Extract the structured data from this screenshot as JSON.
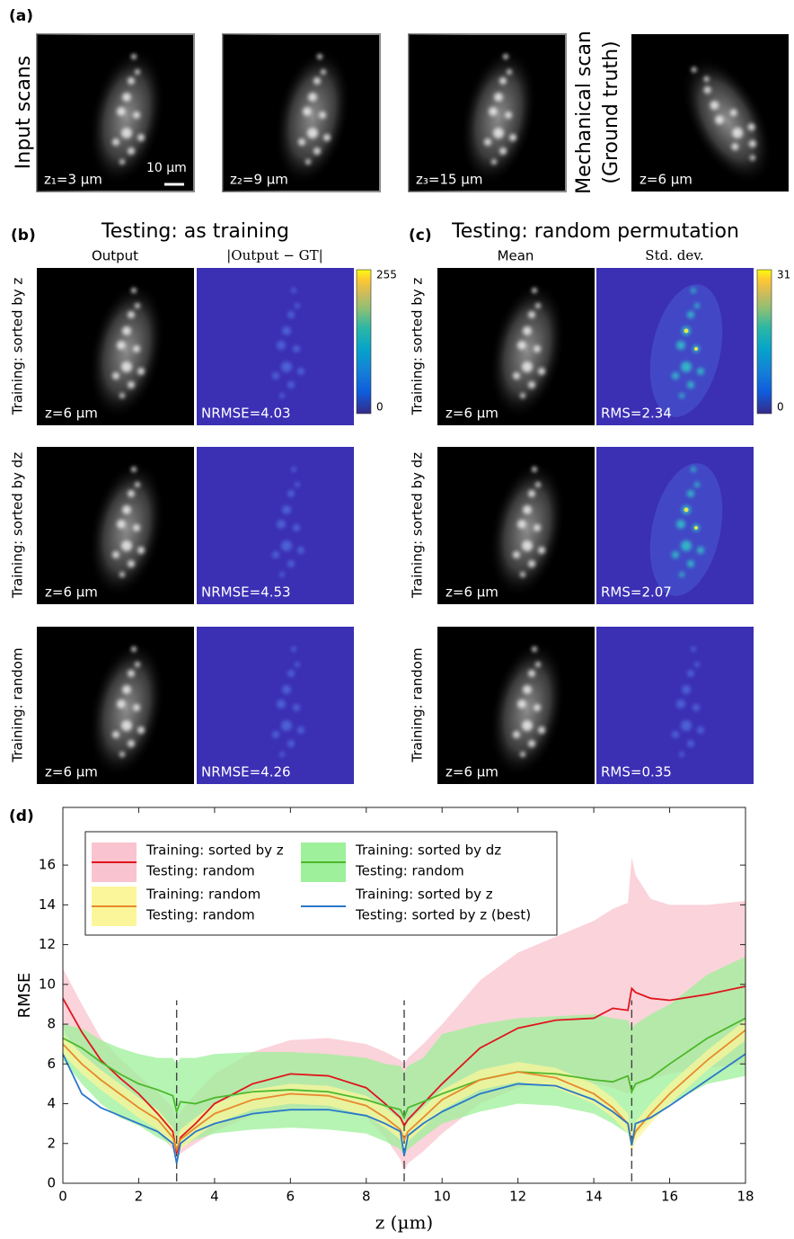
{
  "panel_a": {
    "label": "(a)",
    "row_title": "Input scans",
    "scans": [
      "z₁=3 µm",
      "z₂=9 µm",
      "z₃=15 µm"
    ],
    "scale_bar": "10 µm",
    "gt_title": [
      "Mechanical scan",
      "(Ground truth)"
    ],
    "gt_label": "z=6 µm"
  },
  "panel_b": {
    "label": "(b)",
    "title": "Testing: as training",
    "columns": [
      "Output",
      "|Output − GT|"
    ],
    "colorbar": {
      "max": 255,
      "min": 0
    },
    "rows": [
      {
        "name": "Training: sorted by z",
        "image_label": "z=6 µm",
        "metric": "NRMSE=4.03"
      },
      {
        "name": "Training: sorted by dz",
        "image_label": "z=6 µm",
        "metric": "NRMSE=4.53"
      },
      {
        "name": "Training: random",
        "image_label": "z=6 µm",
        "metric": "NRMSE=4.26"
      }
    ]
  },
  "panel_c": {
    "label": "(c)",
    "title": "Testing: random permutation",
    "columns": [
      "Mean",
      "Std. dev."
    ],
    "colorbar": {
      "max": 31,
      "min": 0
    },
    "rows": [
      {
        "name": "Training: sorted by z",
        "image_label": "z=6 µm",
        "metric": "RMS=2.34"
      },
      {
        "name": "Training: sorted by dz",
        "image_label": "z=6 µm",
        "metric": "RMS=2.07"
      },
      {
        "name": "Training: random",
        "image_label": "z=6 µm",
        "metric": "RMS=0.35"
      }
    ]
  },
  "panel_d_label": "(d)",
  "chart_data": {
    "type": "line",
    "xlabel": "z (µm)",
    "ylabel": "RMSE",
    "xlim": [
      0,
      18
    ],
    "ylim": [
      0,
      18.9
    ],
    "xticks": [
      0,
      2,
      4,
      6,
      8,
      10,
      12,
      14,
      16,
      18
    ],
    "yticks": [
      0,
      2,
      4,
      6,
      8,
      10,
      12,
      14,
      16
    ],
    "vlines": [
      3,
      9,
      15
    ],
    "legend": "upper left",
    "x": [
      0,
      0.5,
      1,
      1.5,
      2,
      2.5,
      2.9,
      3,
      3.1,
      3.5,
      4,
      5,
      6,
      7,
      8,
      8.5,
      8.9,
      9,
      9.1,
      9.5,
      10,
      11,
      12,
      13,
      14,
      14.5,
      14.9,
      15,
      15.1,
      15.5,
      16,
      17,
      18
    ],
    "series": [
      {
        "name": [
          "Training: sorted by z",
          "Testing: random"
        ],
        "color": "#e0151c",
        "band_color": "#f9c4cf",
        "values": [
          9.3,
          7.6,
          6.2,
          5.3,
          4.5,
          3.5,
          2.6,
          1.5,
          2.3,
          3.0,
          4.0,
          5.0,
          5.5,
          5.4,
          4.8,
          4.0,
          3.3,
          2.9,
          3.2,
          4.0,
          5.0,
          6.8,
          7.8,
          8.2,
          8.3,
          8.8,
          8.7,
          9.8,
          9.6,
          9.3,
          9.2,
          9.5,
          9.9
        ],
        "upper": [
          10.8,
          9.0,
          7.3,
          6.3,
          5.4,
          4.6,
          3.8,
          3.0,
          3.6,
          4.5,
          5.5,
          6.6,
          7.2,
          7.3,
          7.0,
          6.6,
          6.2,
          6.0,
          6.3,
          7.0,
          8.0,
          10.2,
          11.6,
          12.4,
          13.2,
          13.8,
          14.1,
          16.4,
          15.5,
          14.3,
          14.0,
          14.0,
          14.2
        ],
        "lower": [
          7.8,
          6.2,
          5.0,
          4.2,
          3.5,
          2.6,
          1.7,
          1.2,
          1.5,
          2.0,
          2.6,
          3.4,
          3.8,
          3.8,
          3.3,
          2.3,
          1.2,
          0.6,
          1.0,
          1.6,
          2.5,
          4.0,
          4.8,
          5.2,
          5.0,
          4.8,
          4.5,
          4.6,
          4.8,
          5.2,
          5.5,
          5.8,
          6.0
        ]
      },
      {
        "name": [
          "Training: sorted by dz",
          "Testing: random"
        ],
        "color": "#4db82b",
        "band_color": "#9ef09a",
        "values": [
          7.3,
          6.8,
          6.1,
          5.5,
          5.0,
          4.7,
          4.4,
          3.6,
          4.1,
          4.0,
          4.3,
          4.6,
          4.7,
          4.6,
          4.2,
          3.9,
          3.7,
          3.3,
          3.8,
          4.1,
          4.5,
          5.2,
          5.6,
          5.5,
          5.2,
          5.1,
          5.4,
          4.6,
          5.0,
          5.3,
          6.0,
          7.3,
          8.3
        ],
        "upper": [
          8.0,
          7.8,
          7.2,
          6.8,
          6.5,
          6.3,
          6.3,
          6.0,
          6.3,
          6.3,
          6.5,
          6.6,
          6.6,
          6.5,
          6.3,
          6.0,
          5.9,
          5.6,
          5.9,
          6.3,
          7.5,
          8.0,
          8.3,
          8.4,
          8.5,
          8.3,
          8.2,
          7.8,
          8.0,
          8.5,
          9.0,
          10.5,
          11.4
        ],
        "lower": [
          6.2,
          5.0,
          4.0,
          3.3,
          2.9,
          2.3,
          1.9,
          1.6,
          1.8,
          2.2,
          2.5,
          2.7,
          2.8,
          2.7,
          2.5,
          2.1,
          1.7,
          1.4,
          1.7,
          2.3,
          3.0,
          3.6,
          4.0,
          3.9,
          3.5,
          3.0,
          2.5,
          2.0,
          2.4,
          3.2,
          4.0,
          5.0,
          5.4
        ]
      },
      {
        "name": [
          "Training: random",
          "Testing: random"
        ],
        "color": "#e8892c",
        "band_color": "#fbf69a",
        "values": [
          7.0,
          6.0,
          5.2,
          4.5,
          3.8,
          3.2,
          2.3,
          1.7,
          2.2,
          2.8,
          3.5,
          4.2,
          4.5,
          4.4,
          3.9,
          3.3,
          2.7,
          2.2,
          2.6,
          3.3,
          4.2,
          5.2,
          5.6,
          5.3,
          4.5,
          3.8,
          3.0,
          2.0,
          2.6,
          3.5,
          4.5,
          6.2,
          7.7
        ],
        "upper": [
          7.5,
          6.5,
          5.7,
          5.0,
          4.3,
          3.7,
          2.8,
          2.2,
          2.7,
          3.3,
          4.0,
          4.7,
          5.0,
          4.9,
          4.4,
          3.8,
          3.2,
          2.7,
          3.1,
          3.8,
          4.7,
          5.7,
          6.1,
          5.8,
          5.0,
          4.3,
          3.5,
          2.5,
          3.1,
          4.0,
          5.0,
          6.7,
          8.2
        ],
        "lower": [
          6.5,
          5.5,
          4.7,
          4.0,
          3.3,
          2.7,
          1.8,
          1.2,
          1.7,
          2.3,
          3.0,
          3.7,
          4.0,
          3.9,
          3.4,
          2.8,
          2.2,
          1.7,
          2.1,
          2.8,
          3.7,
          4.7,
          5.1,
          4.8,
          4.0,
          3.3,
          2.5,
          1.5,
          2.1,
          3.0,
          4.0,
          5.7,
          7.2
        ]
      },
      {
        "name": [
          "Training: sorted by z",
          "Testing: sorted by z (best)"
        ],
        "color": "#2a78c8",
        "values": [
          6.5,
          4.5,
          3.8,
          3.4,
          3.0,
          2.6,
          2.0,
          1.0,
          2.0,
          2.6,
          3.0,
          3.5,
          3.7,
          3.7,
          3.4,
          3.0,
          2.6,
          1.4,
          2.4,
          3.0,
          3.6,
          4.5,
          5.0,
          4.9,
          4.2,
          3.6,
          3.0,
          1.9,
          3.0,
          3.3,
          3.9,
          5.2,
          6.5
        ]
      }
    ]
  }
}
